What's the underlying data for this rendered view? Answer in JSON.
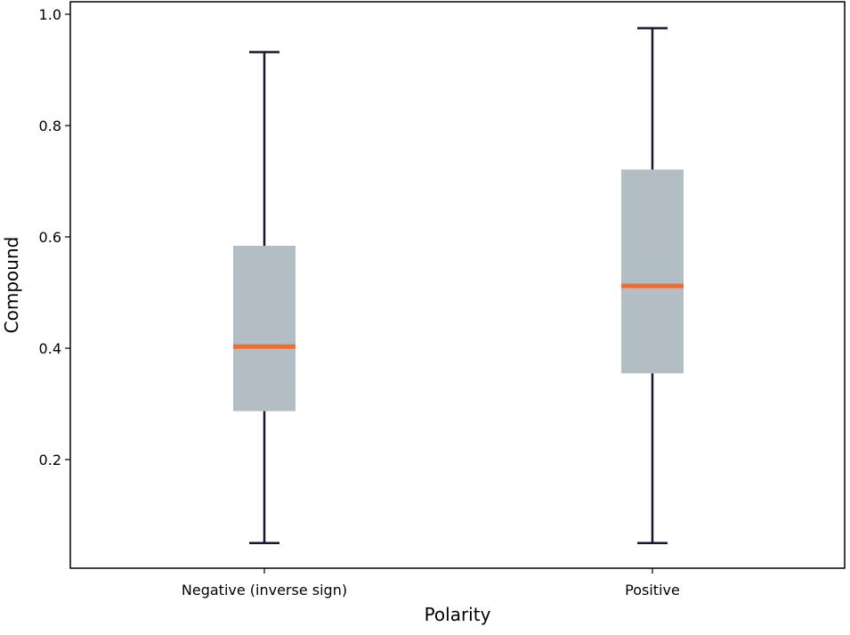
{
  "chart_data": {
    "type": "box",
    "xlabel": "Polarity",
    "ylabel": "Compound",
    "ylim": [
      0.05,
      1.0
    ],
    "yticks": [
      0.2,
      0.4,
      0.6,
      0.8,
      1.0
    ],
    "ytick_labels": [
      "0.2",
      "0.4",
      "0.6",
      "0.8",
      "1.0"
    ],
    "categories": [
      "Negative (inverse sign)",
      "Positive"
    ],
    "boxes": [
      {
        "category": "Negative (inverse sign)",
        "whisker_low": 0.05,
        "q1": 0.287,
        "median": 0.403,
        "q3": 0.584,
        "whisker_high": 0.932
      },
      {
        "category": "Positive",
        "whisker_low": 0.05,
        "q1": 0.355,
        "median": 0.512,
        "q3": 0.721,
        "whisker_high": 0.975
      }
    ],
    "grid": false,
    "colors": {
      "box_fill": "#b3bec4",
      "median": "#f26b2a",
      "whisker": "#1a1530",
      "axes": "#000000"
    }
  }
}
